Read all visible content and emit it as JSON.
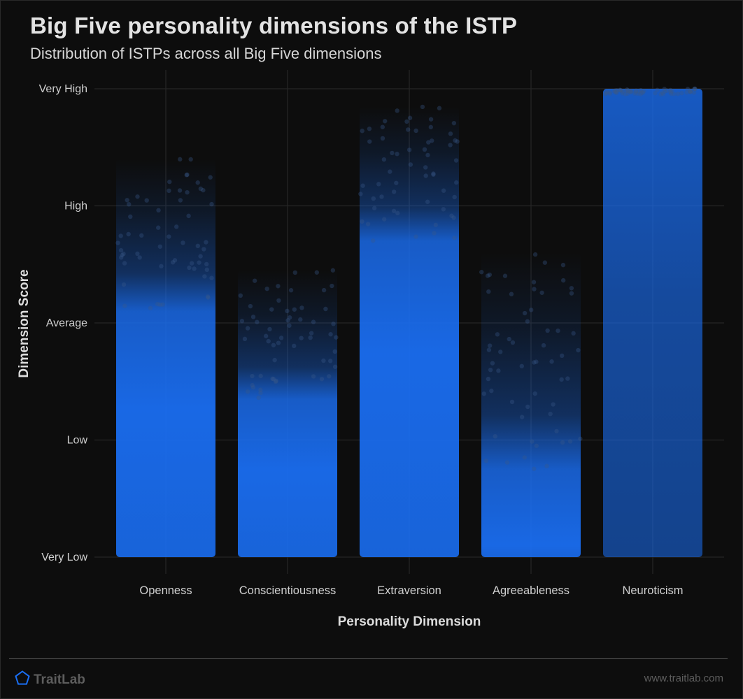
{
  "header": {
    "title": "Big Five personality dimensions of the ISTP",
    "subtitle": "Distribution of ISTPs across all Big Five dimensions"
  },
  "footer": {
    "brand": "TraitLab",
    "brand_icon": "pentagon-icon",
    "url": "www.traitlab.com"
  },
  "colors": {
    "background": "#0d0d0d",
    "points": "#1a6ff5",
    "grid": "#262626",
    "text": "#d6d6d6"
  },
  "chart_data": {
    "type": "scatter",
    "subtype": "jittered strip plot",
    "title": "Big Five personality dimensions of the ISTP",
    "subtitle": "Distribution of ISTPs across all Big Five dimensions",
    "xlabel": "Personality Dimension",
    "ylabel": "Dimension Score",
    "categories": [
      "Openness",
      "Conscientiousness",
      "Extraversion",
      "Agreeableness",
      "Neuroticism"
    ],
    "y_ticks": [
      "Very Low",
      "Low",
      "Average",
      "High",
      "Very High"
    ],
    "ylim": [
      0,
      4
    ],
    "grid": true,
    "legend": "none",
    "series": [
      {
        "category": "Openness",
        "min": 0,
        "max": 3.4,
        "dense_until": 2.1
      },
      {
        "category": "Conscientiousness",
        "min": 0,
        "max": 2.45,
        "dense_until": 1.35
      },
      {
        "category": "Extraversion",
        "min": 0,
        "max": 3.85,
        "dense_until": 2.7
      },
      {
        "category": "Agreeableness",
        "min": 0,
        "max": 2.6,
        "dense_until": 0.75
      },
      {
        "category": "Neuroticism",
        "min": 0,
        "max": 4.0,
        "dense_until": 4.0
      }
    ]
  }
}
